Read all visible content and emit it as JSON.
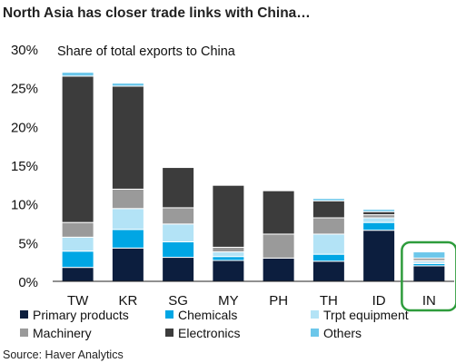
{
  "title": "North Asia has closer trade links with China…",
  "source": "Source: Haver Analytics",
  "colors": {
    "primary_products": "#0c1e3e",
    "chemicals": "#00a6e4",
    "trpt_equipment": "#b3e3f6",
    "machinery": "#9a9a9a",
    "electronics": "#3c3c3c",
    "others": "#6cc7ea",
    "highlight": "#2e9c3c"
  },
  "chart_data": {
    "type": "bar",
    "stacked": true,
    "subtitle": "Share of total exports to China",
    "categories": [
      "TW",
      "KR",
      "SG",
      "MY",
      "PH",
      "TH",
      "ID",
      "IN"
    ],
    "ylim": [
      0,
      30
    ],
    "yticks": [
      "0%",
      "5%",
      "10%",
      "15%",
      "20%",
      "25%",
      "30%"
    ],
    "legend_position": "bottom",
    "series": [
      {
        "name": "Primary products",
        "values": [
          1.8,
          4.3,
          3.1,
          2.7,
          3.0,
          2.6,
          6.6,
          2.0
        ]
      },
      {
        "name": "Chemicals",
        "values": [
          2.1,
          2.4,
          2.0,
          0.5,
          0.0,
          0.9,
          1.0,
          0.3
        ]
      },
      {
        "name": "Trpt equipment",
        "values": [
          1.8,
          2.7,
          2.3,
          0.6,
          0.0,
          2.6,
          0.6,
          0.3
        ]
      },
      {
        "name": "Machinery",
        "values": [
          1.9,
          2.5,
          2.1,
          0.6,
          3.1,
          2.1,
          0.4,
          0.2
        ]
      },
      {
        "name": "Electronics",
        "values": [
          18.9,
          13.3,
          5.2,
          8.0,
          5.6,
          2.2,
          0.4,
          0.2
        ]
      },
      {
        "name": "Others",
        "values": [
          0.5,
          0.4,
          0.0,
          0.0,
          0.0,
          0.3,
          0.3,
          0.8
        ]
      }
    ],
    "highlighted_category": "IN"
  }
}
